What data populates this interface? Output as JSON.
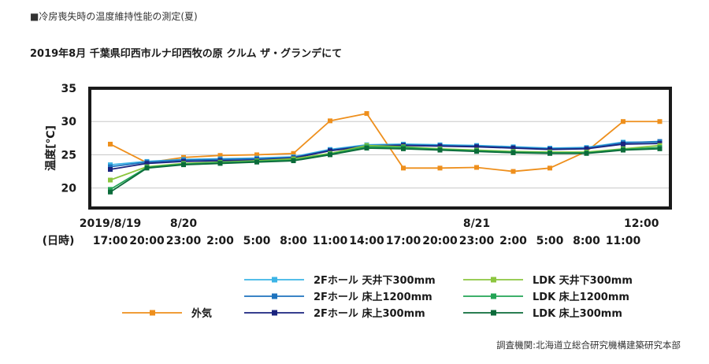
{
  "section_title": "■冷房喪失時の温度維持性能の測定(夏)",
  "chart_title": "2019年8月 千葉県印西市ルナ印西牧の原 クルム ザ・グランデにて",
  "source": "調査機関:北海道立総合研究機構建築研究本部",
  "chart_data": {
    "type": "line",
    "ylabel": "温度[℃]",
    "xlabel": "(日時)",
    "ylim": [
      17,
      35
    ],
    "yticks": [
      20,
      25,
      30,
      35
    ],
    "grid": true,
    "legend_position": "bottom",
    "x": [
      "17:00",
      "20:00",
      "23:00",
      "2:00",
      "5:00",
      "8:00",
      "11:00",
      "14:00",
      "17:00",
      "20:00",
      "23:00",
      "2:00",
      "5:00",
      "8:00",
      "11:00",
      "12:00"
    ],
    "x_time_labels": [
      "17:00",
      "20:00",
      "23:00",
      "2:00",
      "5:00",
      "8:00",
      "11:00",
      "14:00",
      "17:00",
      "20:00",
      "23:00",
      "2:00",
      "5:00",
      "8:00",
      "11:00"
    ],
    "x_date_labels": [
      {
        "label": "2019/8/19",
        "at": 0
      },
      {
        "label": "8/20",
        "at": 2
      },
      {
        "label": "8/21",
        "at": 10
      },
      {
        "label": "12:00",
        "at": 14.5
      }
    ],
    "series": [
      {
        "name": "外気",
        "color": "#ee8f1c",
        "values": [
          26.6,
          23.8,
          24.6,
          24.9,
          25.0,
          25.2,
          30.1,
          31.2,
          23.0,
          23.0,
          23.1,
          22.5,
          23.0,
          25.5,
          30.0,
          30.0
        ]
      },
      {
        "name": "2Fホール 天井下300mm",
        "color": "#3cb4e6",
        "values": [
          23.5,
          24.0,
          24.3,
          24.4,
          24.5,
          24.7,
          25.8,
          26.5,
          26.6,
          26.5,
          26.4,
          26.2,
          26.0,
          26.1,
          26.9,
          26.9
        ]
      },
      {
        "name": "2Fホール 床上1200mm",
        "color": "#1e73be",
        "values": [
          23.2,
          23.9,
          24.2,
          24.3,
          24.4,
          24.6,
          25.7,
          26.4,
          26.5,
          26.4,
          26.3,
          26.1,
          25.9,
          26.0,
          26.8,
          27.0
        ]
      },
      {
        "name": "2Fホール 床上300mm",
        "color": "#1a237e",
        "values": [
          22.8,
          23.7,
          24.0,
          24.1,
          24.2,
          24.5,
          25.6,
          26.3,
          26.4,
          26.3,
          26.2,
          26.0,
          25.8,
          25.9,
          26.6,
          26.7
        ]
      },
      {
        "name": "LDK 天井下300mm",
        "color": "#8cc63f",
        "values": [
          21.2,
          23.2,
          23.7,
          23.9,
          24.1,
          24.4,
          25.2,
          26.4,
          26.2,
          25.9,
          25.7,
          25.5,
          25.4,
          25.4,
          25.9,
          26.4
        ]
      },
      {
        "name": "LDK 床上1200mm",
        "color": "#23a455",
        "values": [
          19.8,
          23.1,
          23.6,
          23.8,
          24.0,
          24.2,
          25.1,
          26.2,
          26.1,
          25.8,
          25.6,
          25.4,
          25.3,
          25.3,
          25.8,
          26.1
        ]
      },
      {
        "name": "LDK 床上300mm",
        "color": "#0b6b3a",
        "values": [
          19.4,
          23.0,
          23.5,
          23.7,
          23.9,
          24.1,
          25.0,
          26.0,
          25.9,
          25.7,
          25.5,
          25.3,
          25.2,
          25.2,
          25.7,
          25.9
        ]
      }
    ]
  }
}
